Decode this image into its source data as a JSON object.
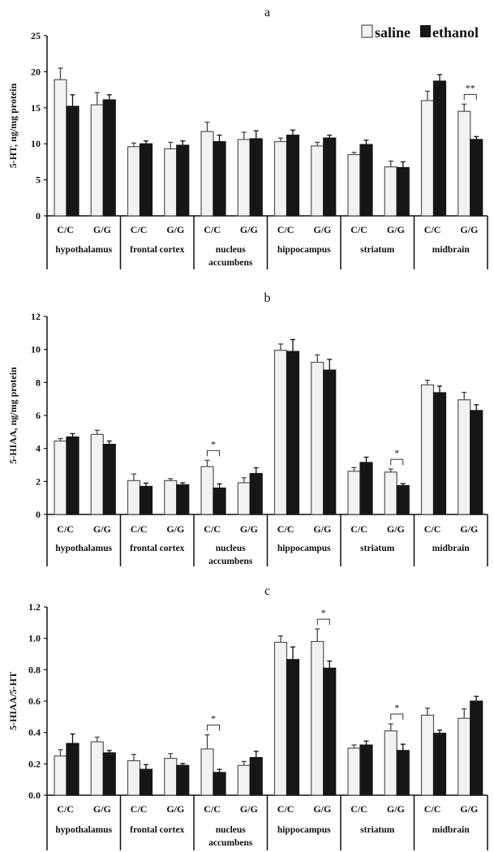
{
  "legend": {
    "saline": "saline",
    "ethanol": "ethanol",
    "placement": "top-right"
  },
  "colors": {
    "saline": "#f1f2f1",
    "saline_border": "#555555",
    "ethanol": "#161616"
  },
  "chart_data": [
    {
      "type": "bar",
      "title": "a",
      "ylabel": "5-HT, ng/mg protein",
      "ylim": [
        0,
        25
      ],
      "yticks": [
        "0",
        "5",
        "10",
        "15",
        "20",
        "25"
      ],
      "regions": [
        [
          "hypothalamus"
        ],
        [
          "frontal cortex"
        ],
        [
          "nucleus",
          "accumbens"
        ],
        [
          "hippocampus"
        ],
        [
          "striatum"
        ],
        [
          "midbrain"
        ]
      ],
      "genotypes": [
        "C/C",
        "G/G"
      ],
      "series": [
        {
          "name": "saline",
          "values": [
            18.9,
            15.4,
            9.6,
            9.3,
            11.7,
            10.6,
            10.3,
            9.7,
            8.5,
            6.8,
            16.0,
            14.5
          ],
          "errors": [
            1.6,
            1.7,
            0.5,
            0.9,
            1.3,
            1.0,
            0.5,
            0.5,
            0.3,
            0.8,
            1.3,
            1.0
          ]
        },
        {
          "name": "ethanol",
          "values": [
            15.2,
            16.1,
            10.0,
            9.8,
            10.3,
            10.7,
            11.2,
            10.8,
            9.9,
            6.7,
            18.7,
            10.6
          ],
          "errors": [
            1.6,
            0.7,
            0.4,
            0.6,
            0.9,
            1.1,
            0.7,
            0.4,
            0.6,
            0.8,
            0.9,
            0.4
          ]
        }
      ],
      "significance": [
        {
          "group": 11,
          "label": "**"
        }
      ]
    },
    {
      "type": "bar",
      "title": "b",
      "ylabel": "5-HIAA, ng/mg protein",
      "ylim": [
        0,
        12
      ],
      "yticks": [
        "0",
        "2",
        "4",
        "6",
        "8",
        "10",
        "12"
      ],
      "regions": [
        [
          "hypothalamus"
        ],
        [
          "frontal cortex"
        ],
        [
          "nucleus",
          "accumbens"
        ],
        [
          "hippocampus"
        ],
        [
          "striatum"
        ],
        [
          "midbrain"
        ]
      ],
      "genotypes": [
        "C/C",
        "G/G"
      ],
      "series": [
        {
          "name": "saline",
          "values": [
            4.45,
            4.85,
            2.05,
            2.05,
            2.9,
            1.92,
            9.95,
            9.22,
            2.62,
            2.57,
            7.85,
            6.95
          ],
          "errors": [
            0.15,
            0.25,
            0.4,
            0.12,
            0.38,
            0.3,
            0.38,
            0.45,
            0.22,
            0.18,
            0.28,
            0.45
          ]
        },
        {
          "name": "ethanol",
          "values": [
            4.7,
            4.25,
            1.7,
            1.8,
            1.6,
            2.48,
            9.88,
            8.75,
            3.15,
            1.75,
            7.38,
            6.3
          ],
          "errors": [
            0.2,
            0.2,
            0.2,
            0.12,
            0.25,
            0.35,
            0.72,
            0.65,
            0.32,
            0.12,
            0.4,
            0.35
          ]
        }
      ],
      "significance": [
        {
          "group": 4,
          "label": "*"
        },
        {
          "group": 9,
          "label": "*"
        }
      ]
    },
    {
      "type": "bar",
      "title": "c",
      "ylabel": "5-HIAA/5-HT",
      "ylim": [
        0,
        1.2
      ],
      "yticks": [
        "0.0",
        "0.2",
        "0.4",
        "0.6",
        "0.8",
        "1.0",
        "1.2"
      ],
      "regions": [
        [
          "hypothalamus"
        ],
        [
          "frontal cortex"
        ],
        [
          "nucleus",
          "accumbens"
        ],
        [
          "hippocampus"
        ],
        [
          "striatum"
        ],
        [
          "midbrain"
        ]
      ],
      "genotypes": [
        "C/C",
        "G/G"
      ],
      "series": [
        {
          "name": "saline",
          "values": [
            0.25,
            0.34,
            0.22,
            0.235,
            0.295,
            0.19,
            0.975,
            0.98,
            0.3,
            0.41,
            0.51,
            0.49
          ],
          "errors": [
            0.04,
            0.03,
            0.04,
            0.03,
            0.09,
            0.025,
            0.04,
            0.08,
            0.02,
            0.045,
            0.045,
            0.06
          ]
        },
        {
          "name": "ethanol",
          "values": [
            0.33,
            0.27,
            0.165,
            0.19,
            0.145,
            0.24,
            0.865,
            0.81,
            0.32,
            0.285,
            0.395,
            0.6
          ],
          "errors": [
            0.06,
            0.015,
            0.03,
            0.012,
            0.02,
            0.04,
            0.08,
            0.045,
            0.025,
            0.04,
            0.02,
            0.03
          ]
        }
      ],
      "significance": [
        {
          "group": 4,
          "label": "*"
        },
        {
          "group": 7,
          "label": "*"
        },
        {
          "group": 9,
          "label": "*"
        }
      ]
    }
  ]
}
